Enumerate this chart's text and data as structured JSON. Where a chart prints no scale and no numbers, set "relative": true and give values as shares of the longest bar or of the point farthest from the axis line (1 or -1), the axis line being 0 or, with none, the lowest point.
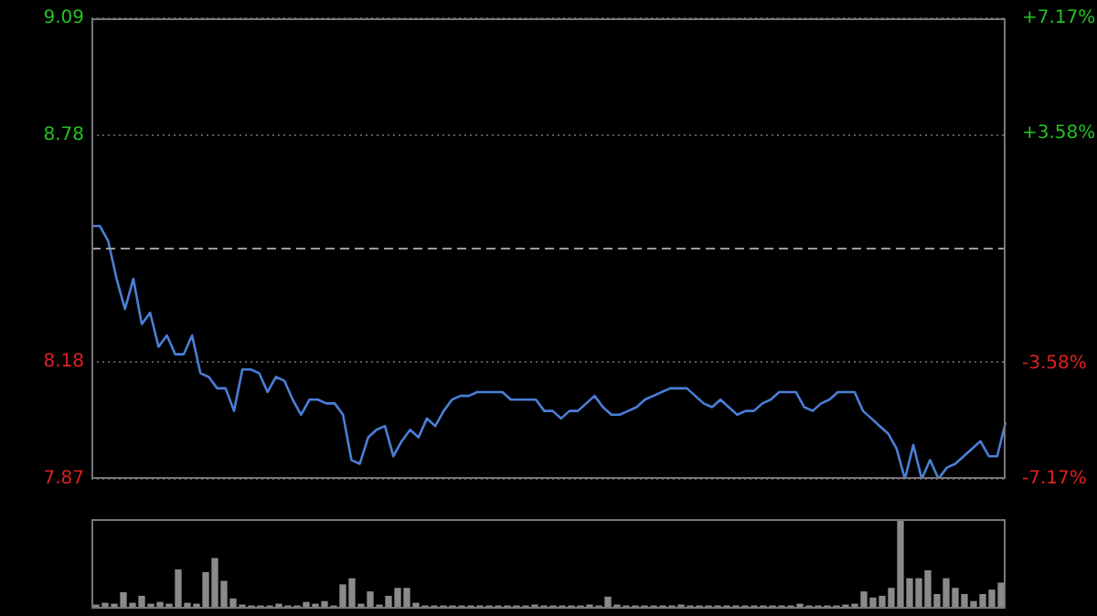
{
  "chart_data": [
    {
      "type": "line",
      "categories": [
        null,
        null,
        null,
        null,
        null,
        null,
        null,
        null,
        null,
        null,
        null,
        null,
        null,
        null,
        null,
        null,
        null,
        null,
        null,
        null,
        null,
        null,
        null,
        null,
        null,
        null,
        null,
        null,
        null,
        null,
        null,
        null,
        null,
        null,
        null,
        null,
        null,
        null,
        null,
        null,
        null,
        null,
        null,
        null,
        null,
        null,
        null,
        null,
        null,
        null,
        null,
        null,
        null,
        null,
        null,
        null,
        null,
        null,
        null,
        null,
        null,
        null,
        null,
        null,
        null,
        null,
        null,
        null,
        null,
        null,
        null,
        null,
        null,
        null,
        null,
        null,
        null,
        null,
        null,
        null,
        null,
        null,
        null,
        null,
        null,
        null,
        null,
        null,
        null,
        null,
        null,
        null,
        null,
        null,
        null,
        null,
        null,
        null,
        null,
        null,
        null,
        null,
        null,
        null,
        null,
        null,
        null,
        null,
        null,
        null
      ],
      "series": [
        {
          "color": "#4a7fd6",
          "values": [
            8.54,
            8.54,
            8.5,
            8.4,
            8.32,
            8.4,
            8.28,
            8.31,
            8.22,
            8.25,
            8.2,
            8.2,
            8.25,
            8.15,
            8.14,
            8.11,
            8.11,
            8.05,
            8.16,
            8.16,
            8.15,
            8.1,
            8.14,
            8.13,
            8.08,
            8.04,
            8.08,
            8.08,
            8.07,
            8.07,
            8.04,
            7.92,
            7.91,
            7.98,
            8.0,
            8.01,
            7.93,
            7.97,
            8.0,
            7.98,
            8.03,
            8.01,
            8.05,
            8.08,
            8.09,
            8.09,
            8.1,
            8.1,
            8.1,
            8.1,
            8.08,
            8.08,
            8.08,
            8.08,
            8.05,
            8.05,
            8.03,
            8.05,
            8.05,
            8.07,
            8.09,
            8.06,
            8.04,
            8.04,
            8.05,
            8.06,
            8.08,
            8.09,
            8.1,
            8.11,
            8.11,
            8.11,
            8.09,
            8.07,
            8.06,
            8.08,
            8.06,
            8.04,
            8.05,
            8.05,
            8.07,
            8.08,
            8.1,
            8.1,
            8.1,
            8.06,
            8.05,
            8.07,
            8.08,
            8.1,
            8.1,
            8.1,
            8.05,
            8.03,
            8.01,
            7.99,
            7.95,
            7.87,
            7.96,
            7.87,
            7.92,
            7.87,
            7.9,
            7.91,
            7.93,
            7.95,
            7.97,
            7.93,
            7.93,
            8.02
          ]
        }
      ],
      "ylim": [
        7.87,
        9.09
      ],
      "yticks": [
        7.87,
        8.18,
        8.78,
        9.09
      ],
      "y2lim": [
        -7.17,
        7.17
      ],
      "y2ticks": [
        {
          "value": -7.17,
          "label": "-7.17%"
        },
        {
          "value": -3.58,
          "label": "-3.58%"
        },
        {
          "value": 3.58,
          "label": "+3.58%"
        },
        {
          "value": 7.17,
          "label": "+7.17%"
        }
      ],
      "ref_lines": [
        {
          "axis": "y",
          "value": 8.48,
          "line_style": "dashed"
        }
      ],
      "grid": "y",
      "legend": false
    },
    {
      "type": "bar",
      "relative": true,
      "color": "#8a8a8a",
      "categories": [
        null,
        null,
        null,
        null,
        null,
        null,
        null,
        null,
        null,
        null,
        null,
        null,
        null,
        null,
        null,
        null,
        null,
        null,
        null,
        null,
        null,
        null,
        null,
        null,
        null,
        null,
        null,
        null,
        null,
        null,
        null,
        null,
        null,
        null,
        null,
        null,
        null,
        null,
        null,
        null,
        null,
        null,
        null,
        null,
        null,
        null,
        null,
        null,
        null,
        null,
        null,
        null,
        null,
        null,
        null,
        null,
        null,
        null,
        null,
        null,
        null,
        null,
        null,
        null,
        null,
        null,
        null,
        null,
        null,
        null,
        null,
        null,
        null,
        null,
        null,
        null,
        null,
        null,
        null,
        null,
        null,
        null,
        null,
        null,
        null,
        null,
        null,
        null,
        null,
        null,
        null,
        null,
        null,
        null,
        null,
        null,
        null,
        null,
        null,
        null
      ],
      "values": [
        0.04,
        0.06,
        0.05,
        0.18,
        0.06,
        0.14,
        0.05,
        0.07,
        0.05,
        0.44,
        0.06,
        0.05,
        0.41,
        0.57,
        0.31,
        0.11,
        0.04,
        0.03,
        0.03,
        0.03,
        0.05,
        0.03,
        0.03,
        0.07,
        0.05,
        0.08,
        0.03,
        0.27,
        0.34,
        0.05,
        0.19,
        0.04,
        0.14,
        0.23,
        0.23,
        0.06,
        0.03,
        0.03,
        0.03,
        0.03,
        0.03,
        0.03,
        0.03,
        0.03,
        0.03,
        0.03,
        0.03,
        0.03,
        0.04,
        0.03,
        0.03,
        0.03,
        0.03,
        0.03,
        0.04,
        0.03,
        0.13,
        0.04,
        0.03,
        0.03,
        0.03,
        0.03,
        0.03,
        0.03,
        0.04,
        0.03,
        0.03,
        0.03,
        0.03,
        0.03,
        0.03,
        0.03,
        0.03,
        0.03,
        0.03,
        0.03,
        0.03,
        0.05,
        0.03,
        0.03,
        0.03,
        0.03,
        0.04,
        0.05,
        0.19,
        0.12,
        0.14,
        0.23,
        1,
        0.34,
        0.34,
        0.43,
        0.16,
        0.34,
        0.23,
        0.16,
        0.08,
        0.16,
        0.21,
        0.29
      ],
      "grid": false,
      "legend": false
    }
  ]
}
